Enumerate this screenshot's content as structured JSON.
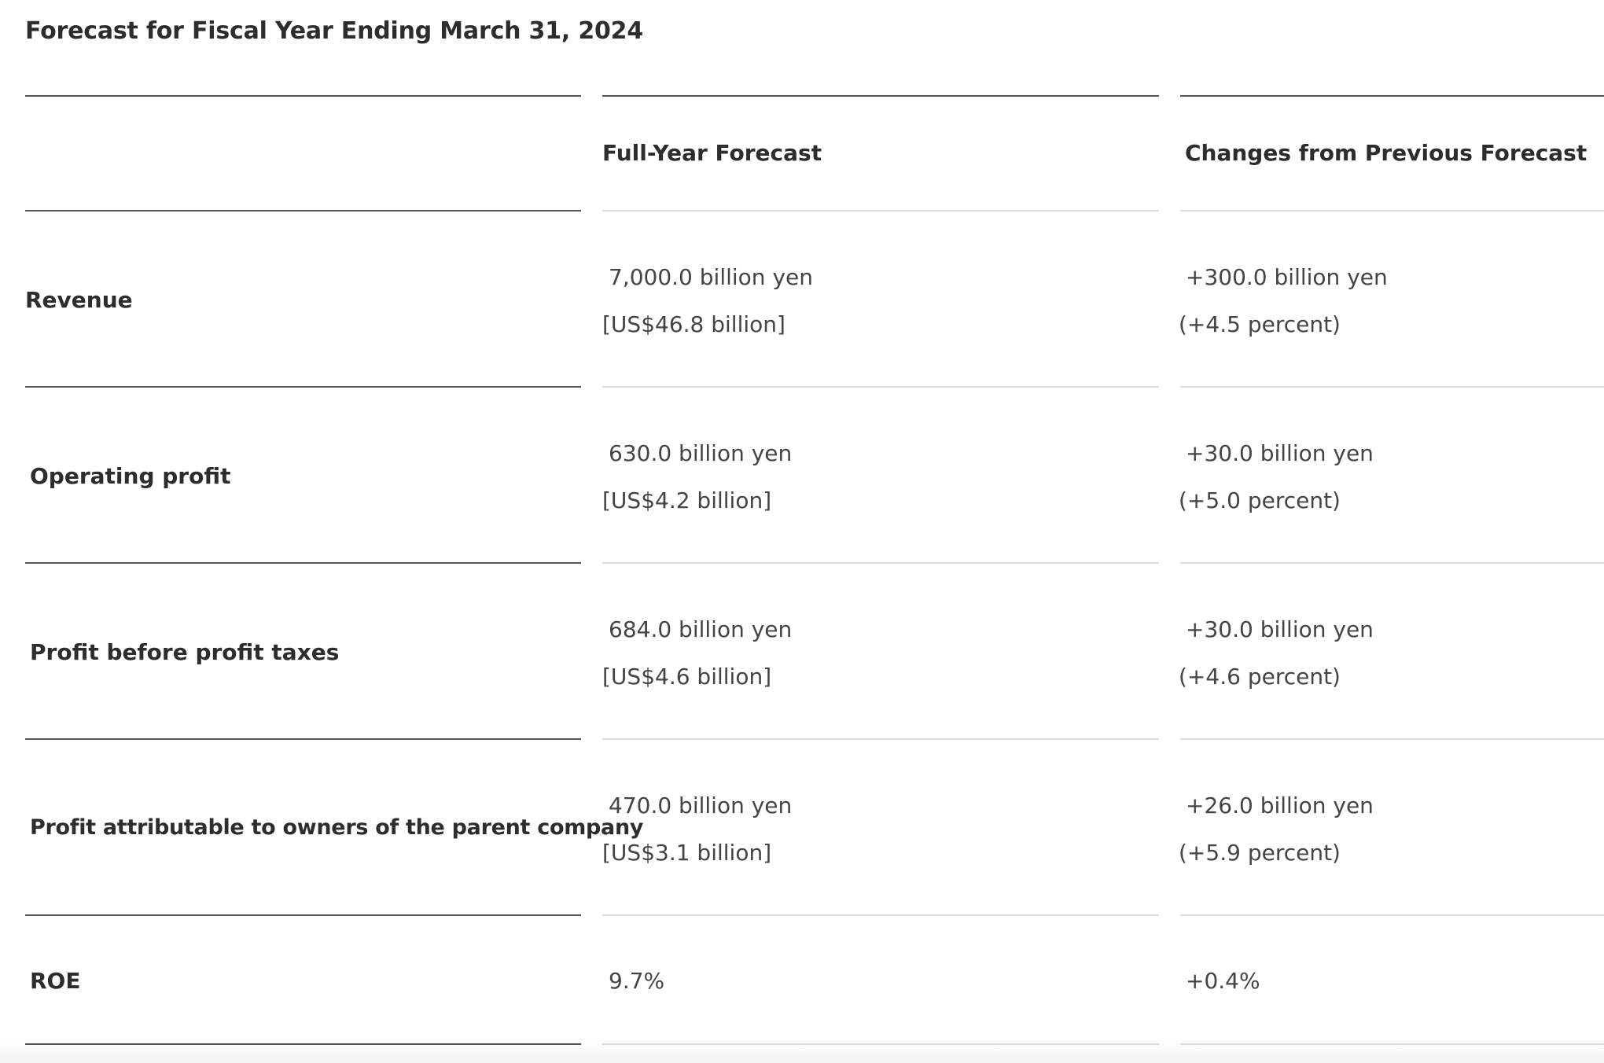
{
  "title": "Forecast for Fiscal Year Ending March 31, 2024",
  "columns": {
    "label": "",
    "full_year": "Full-Year Forecast",
    "changes": "Changes from Previous Forecast"
  },
  "rows": [
    {
      "label": "Revenue",
      "forecast_yen": "7,000.0 billion yen",
      "forecast_usd": "[US$46.8 billion]",
      "change_yen": "+300.0 billion yen",
      "change_pct": "(+4.5 percent)"
    },
    {
      "label": "Operating profit",
      "forecast_yen": "630.0 billion yen",
      "forecast_usd": "[US$4.2 billion]",
      "change_yen": "+30.0 billion yen",
      "change_pct": "(+5.0 percent)"
    },
    {
      "label": "Profit before profit taxes",
      "forecast_yen": "684.0 billion yen",
      "forecast_usd": "[US$4.6 billion]",
      "change_yen": "+30.0 billion yen",
      "change_pct": "(+4.6 percent)"
    },
    {
      "label": "Profit attributable to owners of the parent company",
      "forecast_yen": "470.0 billion yen",
      "forecast_usd": "[US$3.1 billion]",
      "change_yen": "+26.0 billion yen",
      "change_pct": "(+5.9 percent)"
    },
    {
      "label": "ROE",
      "forecast_yen": "9.7%",
      "change_yen": "+0.4%"
    }
  ]
}
